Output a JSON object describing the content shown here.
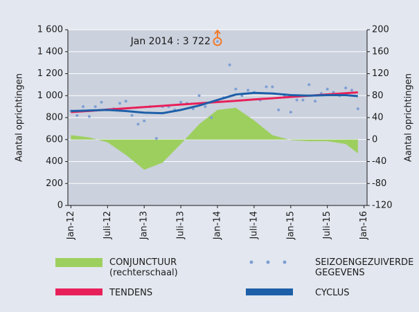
{
  "chart_data": {
    "type": "combo",
    "y_label": "Aantal oprichtingen",
    "y2_label": "Aantal oprichtingen",
    "xlim": [
      -0.5,
      48.5
    ],
    "xticks": [
      {
        "value": 0,
        "label": "Jan-12"
      },
      {
        "value": 6,
        "label": "Juli-12"
      },
      {
        "value": 12,
        "label": "Jan-13"
      },
      {
        "value": 18,
        "label": "Juli-13"
      },
      {
        "value": 24,
        "label": "Jan-14"
      },
      {
        "value": 30,
        "label": "Juli-14"
      },
      {
        "value": 36,
        "label": "Jan-15"
      },
      {
        "value": 42,
        "label": "Juli-15"
      },
      {
        "value": 48,
        "label": "Jan-16"
      }
    ],
    "ylim": [
      0,
      1600
    ],
    "yticks": [
      0,
      200,
      400,
      600,
      800,
      {
        "value": 1000,
        "label": "1 000"
      },
      {
        "value": 1200,
        "label": "1 200"
      },
      {
        "value": 1400,
        "label": "1 400"
      },
      {
        "value": 1600,
        "label": "1 600"
      }
    ],
    "y2lim": [
      -120,
      200
    ],
    "y2ticks": [
      -120,
      -80,
      -40,
      0,
      40,
      80,
      120,
      160,
      200
    ],
    "grid": true,
    "series": [
      {
        "name": "CONJUNCTUUR",
        "legend_note": "(rechterschaal)",
        "kind": "area",
        "axis": "y2",
        "color": "#9dcf5f",
        "x": [
          0,
          3,
          6,
          9,
          12,
          15,
          18,
          21,
          24,
          27,
          30,
          33,
          36,
          39,
          42,
          45,
          47
        ],
        "values": [
          8,
          4,
          -5,
          -28,
          -55,
          -42,
          -8,
          28,
          54,
          58,
          35,
          8,
          -1,
          -3,
          -3,
          -8,
          -25
        ]
      },
      {
        "name": "SEIZOENGEZUIVERDE GEGEVENS",
        "kind": "scatter",
        "color": "#7f9fd4",
        "x": [
          0,
          1,
          2,
          3,
          4,
          5,
          6,
          7,
          8,
          9,
          10,
          11,
          12,
          13,
          14,
          15,
          16,
          17,
          18,
          19,
          20,
          21,
          22,
          23,
          24,
          25,
          26,
          27,
          28,
          29,
          30,
          31,
          32,
          33,
          34,
          35,
          36,
          37,
          38,
          39,
          40,
          41,
          42,
          43,
          44,
          45,
          46,
          47
        ],
        "values": [
          860,
          820,
          900,
          810,
          900,
          940,
          870,
          880,
          930,
          950,
          820,
          740,
          770,
          900,
          610,
          900,
          900,
          870,
          940,
          930,
          880,
          1000,
          900,
          800,
          null,
          980,
          1280,
          1060,
          1000,
          1050,
          1030,
          960,
          1080,
          1080,
          870,
          1000,
          850,
          960,
          960,
          1100,
          950,
          1020,
          1060,
          1030,
          1000,
          1070,
          1050,
          880
        ]
      },
      {
        "name": "TENDENS",
        "kind": "line",
        "color": "#e8205a",
        "x": [
          0,
          3,
          6,
          9,
          12,
          15,
          18,
          21,
          24,
          27,
          30,
          33,
          36,
          39,
          42,
          45,
          47
        ],
        "values": [
          850,
          861,
          873,
          884,
          896,
          907,
          919,
          930,
          942,
          953,
          965,
          976,
          988,
          999,
          1011,
          1022,
          1030
        ]
      },
      {
        "name": "CYCLUS",
        "kind": "line",
        "color": "#1d5fa8",
        "x": [
          0,
          3,
          6,
          9,
          12,
          15,
          18,
          21,
          24,
          27,
          30,
          33,
          36,
          39,
          42,
          45,
          47
        ],
        "values": [
          860,
          865,
          870,
          860,
          845,
          840,
          870,
          910,
          960,
          1010,
          1025,
          1020,
          1005,
          1000,
          1005,
          1005,
          995
        ]
      }
    ],
    "annotation": {
      "text": "Jan 2014 : 3 722",
      "x": 24,
      "color": "#f07a2a"
    }
  }
}
